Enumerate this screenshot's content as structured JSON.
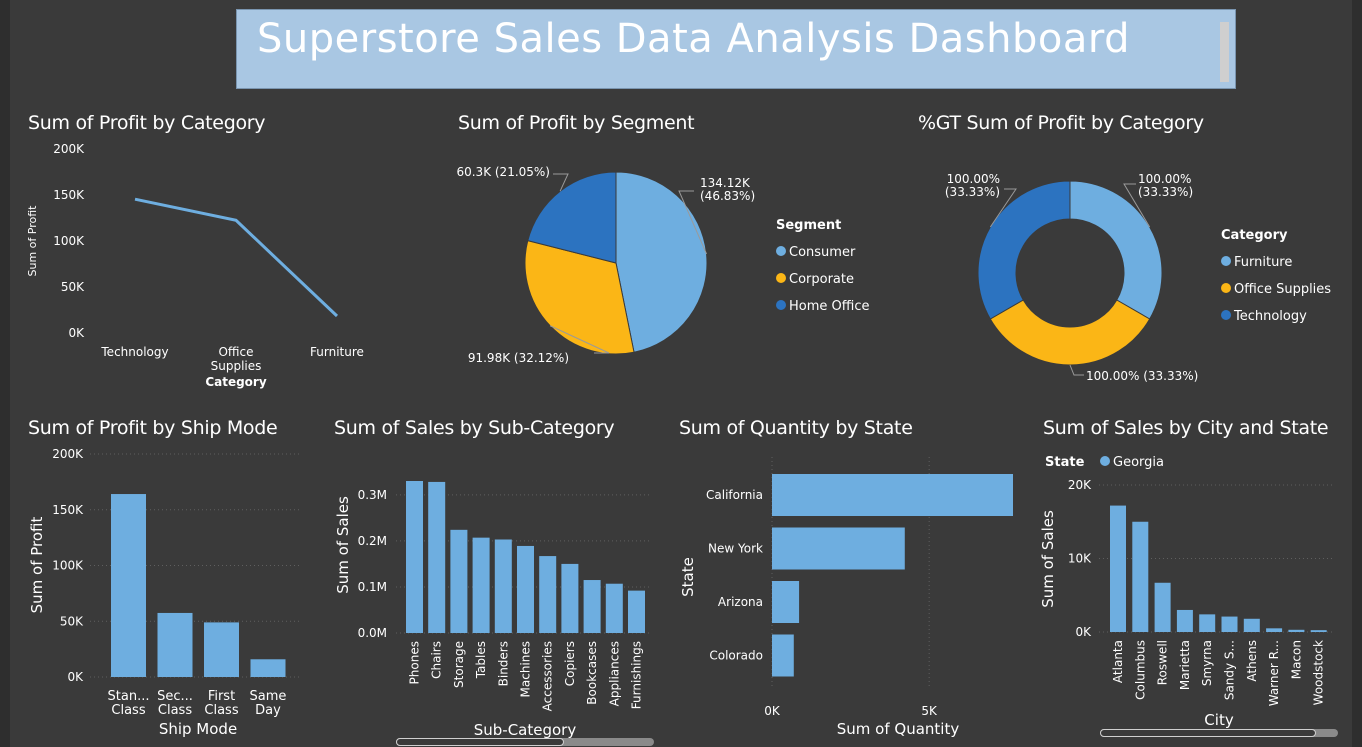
{
  "dashboard": {
    "title": "Superstore Sales Data Analysis Dashboard"
  },
  "colors": {
    "blue_light": "#6eaee0",
    "blue_dark": "#2c73c0",
    "gold": "#fbb616",
    "background": "#3a3a3a",
    "banner": "#a9c7e3"
  },
  "chart_data": [
    {
      "id": "profit_by_category",
      "type": "line",
      "title": "Sum of Profit by Category",
      "xlabel": "Category",
      "ylabel": "Sum of Profit",
      "categories": [
        "Technology",
        "Office Supplies",
        "Furniture"
      ],
      "category_lines": [
        [
          "Technology"
        ],
        [
          "Office",
          "Supplies"
        ],
        [
          "Furniture"
        ]
      ],
      "values": [
        145455,
        122491,
        18451
      ],
      "ylim": [
        0,
        200000
      ],
      "yticks": [
        "0K",
        "50K",
        "100K",
        "150K",
        "200K"
      ]
    },
    {
      "id": "profit_by_segment",
      "type": "pie",
      "title": "Sum of Profit by Segment",
      "legend_title": "Segment",
      "labels": [
        "Consumer",
        "Corporate",
        "Home Office"
      ],
      "values": [
        134.12,
        91.98,
        60.3
      ],
      "data_labels": [
        [
          "134.12K",
          "(46.83%)"
        ],
        [
          "91.98K (32.12%)"
        ],
        [
          "60.3K (21.05%)"
        ]
      ],
      "legend": "right"
    },
    {
      "id": "gt_profit_by_category",
      "type": "pie",
      "title": "%GT Sum of Profit by Category",
      "legend_title": "Category",
      "labels": [
        "Furniture",
        "Office Supplies",
        "Technology"
      ],
      "values": [
        33.33,
        33.33,
        33.33
      ],
      "data_labels": [
        [
          "100.00%",
          "(33.33%)"
        ],
        [
          "100.00% (33.33%)"
        ],
        [
          "100.00%",
          "(33.33%)"
        ]
      ],
      "legend": "right"
    },
    {
      "id": "profit_by_ship_mode",
      "type": "bar",
      "title": "Sum of Profit by Ship Mode",
      "xlabel": "Ship Mode",
      "ylabel": "Sum of Profit",
      "categories": [
        "Standard Class",
        "Second Class",
        "First Class",
        "Same Day"
      ],
      "category_lines": [
        [
          "Stan...",
          "Class"
        ],
        [
          "Sec...",
          "Class"
        ],
        [
          "First",
          "Class"
        ],
        [
          "Same",
          "Day"
        ]
      ],
      "values": [
        164089,
        57447,
        48970,
        15891
      ],
      "ylim": [
        0,
        200000
      ],
      "yticks": [
        "0K",
        "50K",
        "100K",
        "150K",
        "200K"
      ]
    },
    {
      "id": "sales_by_subcategory",
      "type": "bar",
      "title": "Sum of Sales by Sub-Category",
      "xlabel": "Sub-Category",
      "ylabel": "Sum of Sales",
      "categories": [
        "Phones",
        "Chairs",
        "Storage",
        "Tables",
        "Binders",
        "Machines",
        "Accessories",
        "Copiers",
        "Bookcases",
        "Appliances",
        "Furnishings"
      ],
      "values": [
        330000,
        328000,
        224000,
        207000,
        203000,
        189000,
        167000,
        150000,
        115000,
        107000,
        92000
      ],
      "ylim": [
        0,
        330000
      ],
      "yticks": [
        "0.0M",
        "0.1M",
        "0.2M",
        "0.3M"
      ]
    },
    {
      "id": "quantity_by_state",
      "type": "bar",
      "orientation": "horizontal",
      "title": "Sum of Quantity by State",
      "xlabel": "Sum of Quantity",
      "ylabel": "State",
      "categories": [
        "California",
        "New York",
        "Arizona",
        "Colorado"
      ],
      "values": [
        7667,
        4224,
        862,
        693
      ],
      "xlim": [
        0,
        7667
      ],
      "xticks": [
        "0K",
        "5K"
      ]
    },
    {
      "id": "sales_by_city_state",
      "type": "bar",
      "title": "Sum of Sales by City and State",
      "xlabel": "City",
      "ylabel": "Sum of Sales",
      "legend_title": "State",
      "series": [
        {
          "name": "Georgia"
        }
      ],
      "categories": [
        "Atlanta",
        "Columbus",
        "Roswell",
        "Marietta",
        "Smyrna",
        "Sandy S...",
        "Athens",
        "Warner R...",
        "Macon",
        "Woodstock"
      ],
      "values": [
        17200,
        15000,
        6700,
        3000,
        2400,
        2100,
        1800,
        500,
        300,
        250
      ],
      "ylim": [
        0,
        20000
      ],
      "yticks": [
        "0K",
        "10K",
        "20K"
      ]
    }
  ]
}
